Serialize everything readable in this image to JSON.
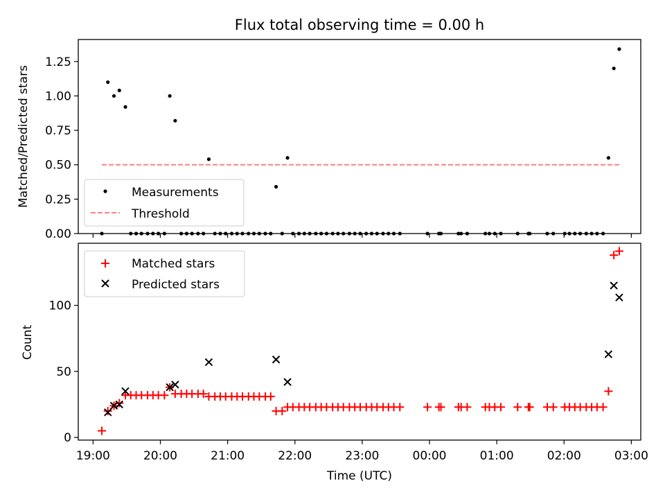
{
  "chart_data": [
    {
      "type": "scatter",
      "title": "Flux total observing time = 0.00 h",
      "xlabel": "",
      "ylabel": "Matched/Predicted stars",
      "ylim": [
        0,
        1.41
      ],
      "x_range_hours": [
        18.78,
        27.14
      ],
      "yticks": [
        0,
        0.25,
        0.5,
        0.75,
        1.0,
        1.25
      ],
      "ytick_labels": [
        "0.00",
        "0.25",
        "0.50",
        "0.75",
        "1.00",
        "1.25"
      ],
      "legend": {
        "placement": "lower-left",
        "entries": [
          "Measurements",
          "Threshold"
        ]
      },
      "series": [
        {
          "name": "Measurements",
          "marker": "dot",
          "color": "#000000",
          "points": [
            [
              19.13,
              0
            ],
            [
              19.22,
              1.1
            ],
            [
              19.31,
              1.0
            ],
            [
              19.39,
              1.04
            ],
            [
              19.48,
              0.92
            ],
            [
              19.56,
              0
            ],
            [
              19.64,
              0
            ],
            [
              19.72,
              0
            ],
            [
              19.81,
              0
            ],
            [
              19.89,
              0
            ],
            [
              19.97,
              0
            ],
            [
              20.06,
              0
            ],
            [
              20.14,
              1.0
            ],
            [
              20.22,
              0.82
            ],
            [
              20.31,
              0
            ],
            [
              20.39,
              0
            ],
            [
              20.47,
              0
            ],
            [
              20.56,
              0
            ],
            [
              20.64,
              0
            ],
            [
              20.72,
              0.54
            ],
            [
              20.81,
              0
            ],
            [
              20.89,
              0
            ],
            [
              20.97,
              0
            ],
            [
              21.06,
              0
            ],
            [
              21.14,
              0
            ],
            [
              21.22,
              0
            ],
            [
              21.31,
              0
            ],
            [
              21.39,
              0
            ],
            [
              21.47,
              0
            ],
            [
              21.56,
              0
            ],
            [
              21.64,
              0
            ],
            [
              21.72,
              0.34
            ],
            [
              21.81,
              0
            ],
            [
              21.89,
              0.55
            ],
            [
              21.97,
              0
            ],
            [
              22.06,
              0
            ],
            [
              22.14,
              0
            ],
            [
              22.22,
              0
            ],
            [
              22.31,
              0
            ],
            [
              22.39,
              0
            ],
            [
              22.47,
              0
            ],
            [
              22.56,
              0
            ],
            [
              22.64,
              0
            ],
            [
              22.72,
              0
            ],
            [
              22.81,
              0
            ],
            [
              22.89,
              0
            ],
            [
              22.97,
              0
            ],
            [
              23.06,
              0
            ],
            [
              23.14,
              0
            ],
            [
              23.22,
              0
            ],
            [
              23.31,
              0
            ],
            [
              23.39,
              0
            ],
            [
              23.47,
              0
            ],
            [
              23.56,
              0
            ],
            [
              23.97,
              0
            ],
            [
              24.14,
              0
            ],
            [
              24.17,
              0
            ],
            [
              24.43,
              0
            ],
            [
              24.47,
              0
            ],
            [
              24.56,
              0
            ],
            [
              24.83,
              0
            ],
            [
              24.89,
              0
            ],
            [
              24.97,
              0
            ],
            [
              25.06,
              0
            ],
            [
              25.31,
              0
            ],
            [
              25.47,
              0
            ],
            [
              25.49,
              0
            ],
            [
              25.75,
              0
            ],
            [
              25.84,
              0
            ],
            [
              26.01,
              0
            ],
            [
              26.08,
              0
            ],
            [
              26.16,
              0
            ],
            [
              26.24,
              0
            ],
            [
              26.33,
              0
            ],
            [
              26.41,
              0
            ],
            [
              26.49,
              0
            ],
            [
              26.58,
              0
            ],
            [
              26.66,
              0.55
            ],
            [
              26.74,
              1.2
            ],
            [
              26.82,
              1.34
            ]
          ]
        },
        {
          "name": "Threshold",
          "marker": "dashed-line",
          "color": "#ff7f7f",
          "points": [
            [
              19.13,
              0.5
            ],
            [
              26.82,
              0.5
            ]
          ]
        }
      ]
    },
    {
      "type": "scatter",
      "title": "",
      "xlabel": "Time (UTC)",
      "ylabel": "Count",
      "ylim": [
        -2,
        147
      ],
      "x_range_hours": [
        18.78,
        27.14
      ],
      "yticks": [
        0,
        50,
        100
      ],
      "ytick_labels": [
        "0",
        "50",
        "100"
      ],
      "xticks": [
        19,
        20,
        21,
        22,
        23,
        24,
        25,
        26,
        27
      ],
      "xtick_labels": [
        "19:00",
        "20:00",
        "21:00",
        "22:00",
        "23:00",
        "00:00",
        "01:00",
        "02:00",
        "03:00"
      ],
      "legend": {
        "placement": "top-left",
        "entries": [
          "Matched stars",
          "Predicted stars"
        ]
      },
      "series": [
        {
          "name": "Matched stars",
          "marker": "plus",
          "color": "#ff0000",
          "points": [
            [
              19.13,
              5
            ],
            [
              19.22,
              20
            ],
            [
              19.31,
              24
            ],
            [
              19.39,
              26
            ],
            [
              19.48,
              32
            ],
            [
              19.56,
              32
            ],
            [
              19.64,
              32
            ],
            [
              19.72,
              32
            ],
            [
              19.81,
              32
            ],
            [
              19.89,
              32
            ],
            [
              19.97,
              32
            ],
            [
              20.06,
              32
            ],
            [
              20.14,
              38
            ],
            [
              20.22,
              33
            ],
            [
              20.31,
              33
            ],
            [
              20.39,
              33
            ],
            [
              20.47,
              33
            ],
            [
              20.56,
              33
            ],
            [
              20.64,
              33
            ],
            [
              20.72,
              31
            ],
            [
              20.81,
              31
            ],
            [
              20.89,
              31
            ],
            [
              20.97,
              31
            ],
            [
              21.06,
              31
            ],
            [
              21.14,
              31
            ],
            [
              21.22,
              31
            ],
            [
              21.31,
              31
            ],
            [
              21.39,
              31
            ],
            [
              21.47,
              31
            ],
            [
              21.56,
              31
            ],
            [
              21.64,
              31
            ],
            [
              21.72,
              20
            ],
            [
              21.81,
              20
            ],
            [
              21.89,
              23
            ],
            [
              21.97,
              23
            ],
            [
              22.06,
              23
            ],
            [
              22.14,
              23
            ],
            [
              22.22,
              23
            ],
            [
              22.31,
              23
            ],
            [
              22.39,
              23
            ],
            [
              22.47,
              23
            ],
            [
              22.56,
              23
            ],
            [
              22.64,
              23
            ],
            [
              22.72,
              23
            ],
            [
              22.81,
              23
            ],
            [
              22.89,
              23
            ],
            [
              22.97,
              23
            ],
            [
              23.06,
              23
            ],
            [
              23.14,
              23
            ],
            [
              23.22,
              23
            ],
            [
              23.31,
              23
            ],
            [
              23.39,
              23
            ],
            [
              23.47,
              23
            ],
            [
              23.56,
              23
            ],
            [
              23.97,
              23
            ],
            [
              24.14,
              23
            ],
            [
              24.17,
              23
            ],
            [
              24.43,
              23
            ],
            [
              24.47,
              23
            ],
            [
              24.56,
              23
            ],
            [
              24.83,
              23
            ],
            [
              24.89,
              23
            ],
            [
              24.97,
              23
            ],
            [
              25.06,
              23
            ],
            [
              25.31,
              23
            ],
            [
              25.47,
              23
            ],
            [
              25.49,
              23
            ],
            [
              25.75,
              23
            ],
            [
              25.84,
              23
            ],
            [
              26.01,
              23
            ],
            [
              26.08,
              23
            ],
            [
              26.16,
              23
            ],
            [
              26.24,
              23
            ],
            [
              26.33,
              23
            ],
            [
              26.41,
              23
            ],
            [
              26.49,
              23
            ],
            [
              26.58,
              23
            ],
            [
              26.66,
              35
            ],
            [
              26.74,
              138
            ],
            [
              26.82,
              141
            ]
          ]
        },
        {
          "name": "Predicted stars",
          "marker": "x",
          "color": "#000000",
          "points": [
            [
              19.22,
              19
            ],
            [
              19.31,
              24
            ],
            [
              19.39,
              25
            ],
            [
              19.48,
              35
            ],
            [
              20.14,
              38
            ],
            [
              20.22,
              40
            ],
            [
              20.72,
              57
            ],
            [
              21.72,
              59
            ],
            [
              21.89,
              42
            ],
            [
              26.66,
              63
            ],
            [
              26.74,
              115
            ],
            [
              26.82,
              106
            ]
          ]
        }
      ]
    }
  ]
}
